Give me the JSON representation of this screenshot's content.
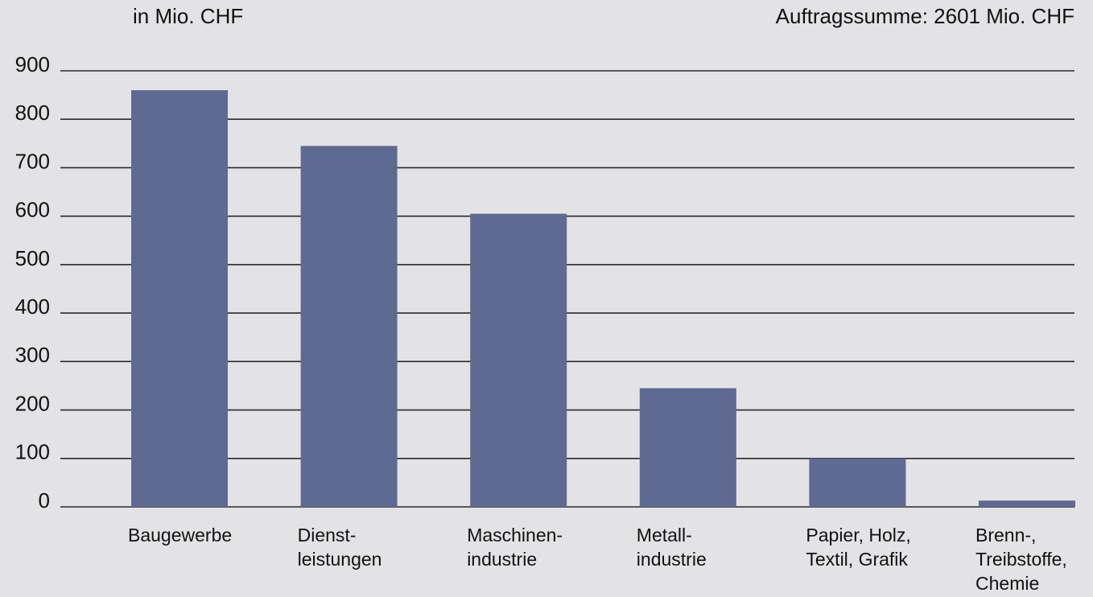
{
  "chart_data": {
    "type": "bar",
    "title": "Auftragssumme: 2601 Mio. CHF",
    "y_axis_label": "in Mio. CHF",
    "categories": [
      "Baugewerbe",
      "Dienst-\nleistungen",
      "Maschinen-\nindustrie",
      "Metall-\nindustrie",
      "Papier, Holz,\nTextil, Grafik",
      "Brenn-,\nTreibstoffe,\nChemie"
    ],
    "values": [
      860,
      745,
      605,
      245,
      100,
      13
    ],
    "color": "#5f6a93",
    "ylim": [
      0,
      900
    ],
    "yticks": [
      0,
      100,
      200,
      300,
      400,
      500,
      600,
      700,
      800,
      900
    ],
    "grid": true
  }
}
